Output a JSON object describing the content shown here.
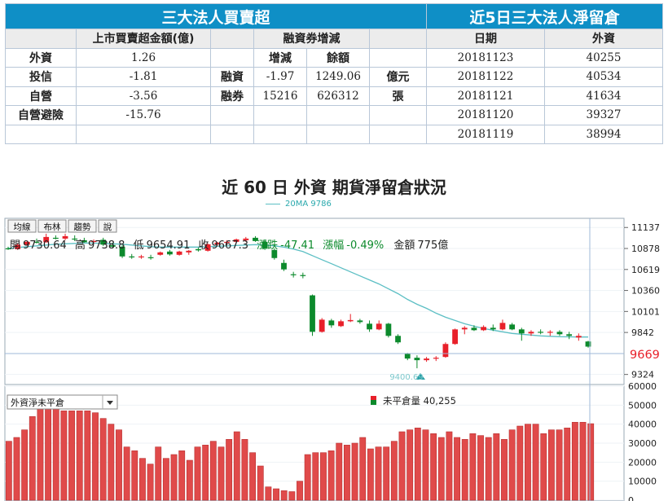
{
  "table_left": {
    "title": "三大法人買賣超",
    "col_amount": "上市買賣超金額(億)",
    "col_margin": "融資券增減",
    "col_change": "增減",
    "col_balance": "餘額",
    "rows": [
      {
        "name": "外資",
        "amount": "1.26",
        "kind": "",
        "change": "",
        "balance": "",
        "unit": ""
      },
      {
        "name": "投信",
        "amount": "-1.81",
        "kind": "融資",
        "change": "-1.97",
        "balance": "1249.06",
        "unit": "億元"
      },
      {
        "name": "自營",
        "amount": "-3.56",
        "kind": "融券",
        "change": "15216",
        "balance": "626312",
        "unit": "張"
      },
      {
        "name": "自營避險",
        "amount": "-15.76",
        "kind": "",
        "change": "",
        "balance": "",
        "unit": ""
      }
    ]
  },
  "table_right": {
    "title": "近5日三大法人淨留倉",
    "col_date": "日期",
    "col_foreign": "外資",
    "rows": [
      {
        "date": "20181123",
        "value": "40255"
      },
      {
        "date": "20181122",
        "value": "40534"
      },
      {
        "date": "20181121",
        "value": "41634"
      },
      {
        "date": "20181120",
        "value": "39327"
      },
      {
        "date": "20181119",
        "value": "38994"
      }
    ]
  },
  "subtitle": "近 60 日 外資 期貨淨留倉狀況",
  "ma_legend": "20MA 9786",
  "toolbar": {
    "btn1": "均線",
    "btn2": "布林",
    "btn3": "趨勢",
    "btn4": "說"
  },
  "ohlc": {
    "open_label": "開",
    "open": "9730.64",
    "high_label": "高",
    "high": "9738.8",
    "low_label": "低",
    "low": "9654.91",
    "close_label": "收",
    "close": "9667.3",
    "chg_label": "漲跌",
    "chg": "-47.41",
    "pct_label": "漲幅",
    "pct": "-0.49%",
    "amt_label": "金額",
    "amt": "775億"
  },
  "low_marker": "9400.69",
  "current_price": "9669",
  "dropdown_value": "外資淨未平倉",
  "oi_legend": "未平倉量 40,255",
  "colors": {
    "header": "#0f8fc6",
    "up": "#e8202a",
    "down": "#0c8a2c",
    "ma": "#5cbfc4",
    "bar": "#e04a4a"
  },
  "chart_data": [
    {
      "type": "candlestick",
      "title": "",
      "yticks": [
        11137,
        10878,
        10619,
        10360,
        10101,
        9842,
        9324
      ],
      "ylim": [
        9200,
        11250
      ],
      "candles": [
        {
          "o": 10880,
          "h": 10900,
          "l": 10860,
          "c": 10870
        },
        {
          "o": 10870,
          "h": 10940,
          "l": 10860,
          "c": 10925
        },
        {
          "o": 10925,
          "h": 10975,
          "l": 10910,
          "c": 10960
        },
        {
          "o": 10960,
          "h": 11000,
          "l": 10940,
          "c": 10950
        },
        {
          "o": 10955,
          "h": 11060,
          "l": 10950,
          "c": 11020
        },
        {
          "o": 11010,
          "h": 11040,
          "l": 10990,
          "c": 11000
        },
        {
          "o": 11000,
          "h": 11060,
          "l": 10980,
          "c": 11030
        },
        {
          "o": 11000,
          "h": 11040,
          "l": 10970,
          "c": 10990
        },
        {
          "o": 10980,
          "h": 11010,
          "l": 10950,
          "c": 10955
        },
        {
          "o": 10960,
          "h": 10990,
          "l": 10940,
          "c": 10970
        },
        {
          "o": 10985,
          "h": 11010,
          "l": 10910,
          "c": 10925
        },
        {
          "o": 10920,
          "h": 10950,
          "l": 10880,
          "c": 10900
        },
        {
          "o": 10900,
          "h": 10920,
          "l": 10760,
          "c": 10780
        },
        {
          "o": 10780,
          "h": 10810,
          "l": 10750,
          "c": 10770
        },
        {
          "o": 10770,
          "h": 10800,
          "l": 10750,
          "c": 10780
        },
        {
          "o": 10770,
          "h": 10800,
          "l": 10740,
          "c": 10760
        },
        {
          "o": 10800,
          "h": 10840,
          "l": 10790,
          "c": 10830
        },
        {
          "o": 10840,
          "h": 10860,
          "l": 10790,
          "c": 10805
        },
        {
          "o": 10800,
          "h": 10850,
          "l": 10790,
          "c": 10840
        },
        {
          "o": 10830,
          "h": 10860,
          "l": 10800,
          "c": 10850
        },
        {
          "o": 10870,
          "h": 10890,
          "l": 10840,
          "c": 10855
        },
        {
          "o": 10850,
          "h": 10940,
          "l": 10840,
          "c": 10930
        },
        {
          "o": 10930,
          "h": 10960,
          "l": 10910,
          "c": 10950
        },
        {
          "o": 10950,
          "h": 10980,
          "l": 10930,
          "c": 10960
        },
        {
          "o": 10960,
          "h": 11000,
          "l": 10950,
          "c": 10990
        },
        {
          "o": 10980,
          "h": 11020,
          "l": 10960,
          "c": 11000
        },
        {
          "o": 11010,
          "h": 11030,
          "l": 10960,
          "c": 10970
        },
        {
          "o": 10960,
          "h": 10990,
          "l": 10860,
          "c": 10880
        },
        {
          "o": 10860,
          "h": 10880,
          "l": 10740,
          "c": 10760
        },
        {
          "o": 10700,
          "h": 10740,
          "l": 10600,
          "c": 10620
        },
        {
          "o": 10560,
          "h": 10590,
          "l": 10520,
          "c": 10550
        },
        {
          "o": 10550,
          "h": 10580,
          "l": 10510,
          "c": 10540
        },
        {
          "o": 10300,
          "h": 10310,
          "l": 9800,
          "c": 9850
        },
        {
          "o": 9850,
          "h": 10020,
          "l": 9840,
          "c": 10000
        },
        {
          "o": 9990,
          "h": 10010,
          "l": 9900,
          "c": 9930
        },
        {
          "o": 9920,
          "h": 10000,
          "l": 9910,
          "c": 9980
        },
        {
          "o": 9980,
          "h": 10070,
          "l": 9970,
          "c": 9995
        },
        {
          "o": 9990,
          "h": 10010,
          "l": 9950,
          "c": 9970
        },
        {
          "o": 9950,
          "h": 9990,
          "l": 9850,
          "c": 9880
        },
        {
          "o": 9880,
          "h": 9990,
          "l": 9870,
          "c": 9950
        },
        {
          "o": 9950,
          "h": 9960,
          "l": 9780,
          "c": 9800
        },
        {
          "o": 9800,
          "h": 9820,
          "l": 9700,
          "c": 9720
        },
        {
          "o": 9580,
          "h": 9590,
          "l": 9500,
          "c": 9520
        },
        {
          "o": 9530,
          "h": 9560,
          "l": 9400,
          "c": 9500
        },
        {
          "o": 9500,
          "h": 9540,
          "l": 9480,
          "c": 9520
        },
        {
          "o": 9520,
          "h": 9550,
          "l": 9490,
          "c": 9530
        },
        {
          "o": 9540,
          "h": 9720,
          "l": 9530,
          "c": 9700
        },
        {
          "o": 9700,
          "h": 9890,
          "l": 9690,
          "c": 9880
        },
        {
          "o": 9880,
          "h": 9920,
          "l": 9820,
          "c": 9900
        },
        {
          "o": 9900,
          "h": 9930,
          "l": 9860,
          "c": 9870
        },
        {
          "o": 9870,
          "h": 9930,
          "l": 9860,
          "c": 9910
        },
        {
          "o": 9900,
          "h": 9940,
          "l": 9860,
          "c": 9880
        },
        {
          "o": 9880,
          "h": 10000,
          "l": 9870,
          "c": 9960
        },
        {
          "o": 9940,
          "h": 9960,
          "l": 9870,
          "c": 9880
        },
        {
          "o": 9880,
          "h": 9900,
          "l": 9740,
          "c": 9830
        },
        {
          "o": 9830,
          "h": 9870,
          "l": 9800,
          "c": 9850
        },
        {
          "o": 9850,
          "h": 9880,
          "l": 9820,
          "c": 9840
        },
        {
          "o": 9840,
          "h": 9870,
          "l": 9800,
          "c": 9850
        },
        {
          "o": 9850,
          "h": 9870,
          "l": 9800,
          "c": 9820
        },
        {
          "o": 9820,
          "h": 9850,
          "l": 9760,
          "c": 9800
        },
        {
          "o": 9780,
          "h": 9830,
          "l": 9740,
          "c": 9800
        },
        {
          "o": 9730.64,
          "h": 9738.8,
          "l": 9654.91,
          "c": 9667.3
        }
      ],
      "ma20": [
        10880,
        10890,
        10900,
        10910,
        10920,
        10930,
        10935,
        10940,
        10945,
        10945,
        10940,
        10935,
        10930,
        10920,
        10910,
        10900,
        10895,
        10895,
        10895,
        10895,
        10895,
        10900,
        10905,
        10910,
        10915,
        10920,
        10925,
        10920,
        10910,
        10895,
        10870,
        10840,
        10790,
        10740,
        10690,
        10640,
        10590,
        10540,
        10490,
        10440,
        10380,
        10320,
        10250,
        10190,
        10140,
        10080,
        10030,
        9990,
        9950,
        9920,
        9890,
        9870,
        9850,
        9830,
        9820,
        9810,
        9800,
        9795,
        9790,
        9788,
        9786,
        9786
      ]
    },
    {
      "type": "bar",
      "title": "",
      "yticks": [
        60000,
        50000,
        40000,
        30000,
        20000,
        10000,
        0
      ],
      "ylim": [
        0,
        60000
      ],
      "values": [
        31000,
        33000,
        37000,
        44000,
        48000,
        53000,
        49000,
        47000,
        47000,
        47000,
        47000,
        46000,
        43000,
        40000,
        37000,
        28000,
        26000,
        22000,
        19000,
        28000,
        22000,
        24000,
        26000,
        21000,
        28000,
        29000,
        31000,
        28000,
        32000,
        36000,
        32000,
        25000,
        18000,
        7000,
        6000,
        5000,
        4500,
        10000,
        24000,
        25000,
        25000,
        26000,
        30000,
        29000,
        30000,
        33000,
        27000,
        28000,
        28000,
        31000,
        36000,
        37000,
        38000,
        37000,
        35000,
        33000,
        36000,
        33000,
        32000,
        35000,
        34000,
        33000,
        35000,
        32000,
        37000,
        39000,
        40000,
        40000,
        35000,
        37000,
        37000,
        38000,
        41000,
        41000,
        40255
      ]
    }
  ]
}
